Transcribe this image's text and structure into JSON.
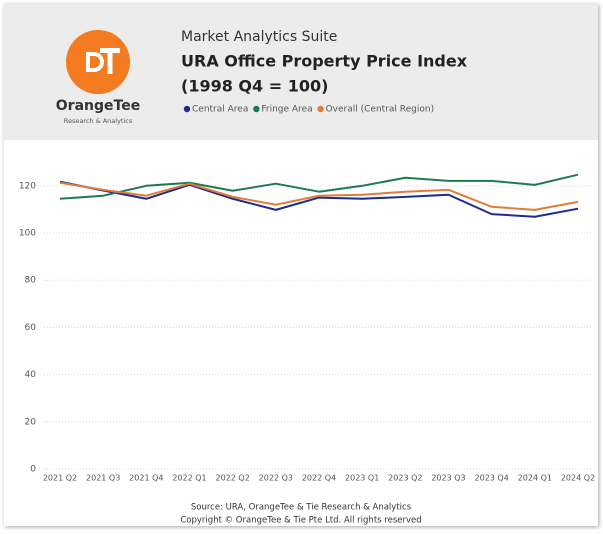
{
  "header": {
    "app": "Market Analytics Suite"
  },
  "logo": {
    "name": "OrangeTee",
    "tagline": "Research & Analytics"
  },
  "chart_data": {
    "type": "line",
    "title": "URA Office Property Price Index",
    "subtitle": "(1998 Q4 = 100)",
    "categories": [
      "2021 Q2",
      "2021 Q3",
      "2021 Q4",
      "2022 Q1",
      "2022 Q2",
      "2022 Q3",
      "2022 Q4",
      "2023 Q1",
      "2023 Q2",
      "2023 Q3",
      "2023 Q4",
      "2024 Q1",
      "2024 Q2"
    ],
    "series": [
      {
        "name": "Central Area",
        "color": "#1f2a8c",
        "values": [
          121.7,
          118.0,
          114.5,
          120.4,
          114.5,
          109.8,
          115.0,
          114.5,
          115.3,
          116.2,
          108.0,
          106.9,
          110.3
        ]
      },
      {
        "name": "Fringe Area",
        "color": "#1e7b4f",
        "values": [
          114.5,
          115.8,
          120.0,
          121.3,
          117.9,
          120.9,
          117.5,
          120.0,
          123.4,
          122.1,
          122.1,
          120.4,
          124.7
        ]
      },
      {
        "name": "Overall (Central Region)",
        "color": "#e07b39",
        "values": [
          121.3,
          118.3,
          115.8,
          120.9,
          115.3,
          112.0,
          115.8,
          116.2,
          117.5,
          118.3,
          111.1,
          109.8,
          113.2
        ]
      }
    ],
    "ylim": [
      0,
      125
    ],
    "yticks": [
      0,
      20,
      40,
      60,
      80,
      100,
      120
    ],
    "grid": true
  },
  "footer": {
    "source": "Source: URA, OrangeTee & Tie Research & Analytics",
    "copyright": "Copyright © OrangeTee & Tie Pte Ltd. All rights reserved"
  }
}
